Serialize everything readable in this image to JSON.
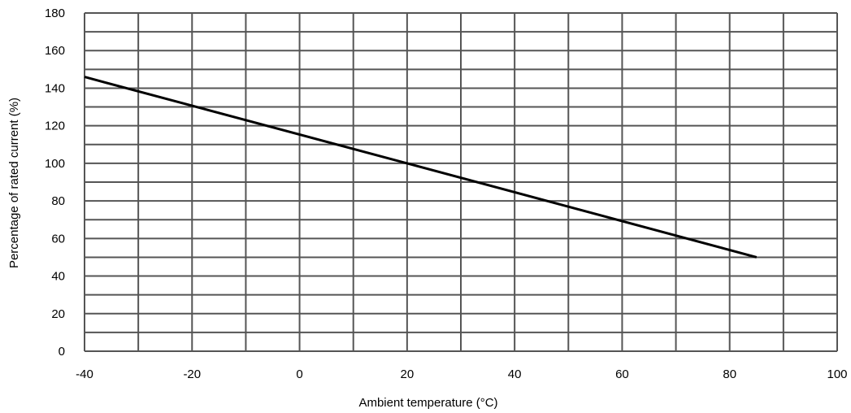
{
  "chart_data": {
    "type": "line",
    "xlabel": "Ambient temperature (°C)",
    "ylabel": "Percentage of rated current (%)",
    "xlim": [
      -40,
      100
    ],
    "ylim": [
      0,
      180
    ],
    "xticks": [
      -40,
      -20,
      0,
      20,
      40,
      60,
      80,
      100
    ],
    "xtick_labels": [
      "-40",
      "-20",
      "0",
      "20",
      "40",
      "60",
      "80",
      "100"
    ],
    "yticks": [
      0,
      20,
      40,
      60,
      80,
      100,
      120,
      140,
      160,
      180
    ],
    "ytick_labels": [
      "0",
      "20",
      "40",
      "60",
      "80",
      "100",
      "120",
      "140",
      "160",
      "180"
    ],
    "grid": true,
    "legend": "none",
    "series": [
      {
        "x": [
          -40,
          20,
          85
        ],
        "y": [
          146,
          100,
          50
        ]
      }
    ]
  },
  "colors": {
    "grid": "#555555",
    "line": "#000000",
    "text": "#000000"
  }
}
